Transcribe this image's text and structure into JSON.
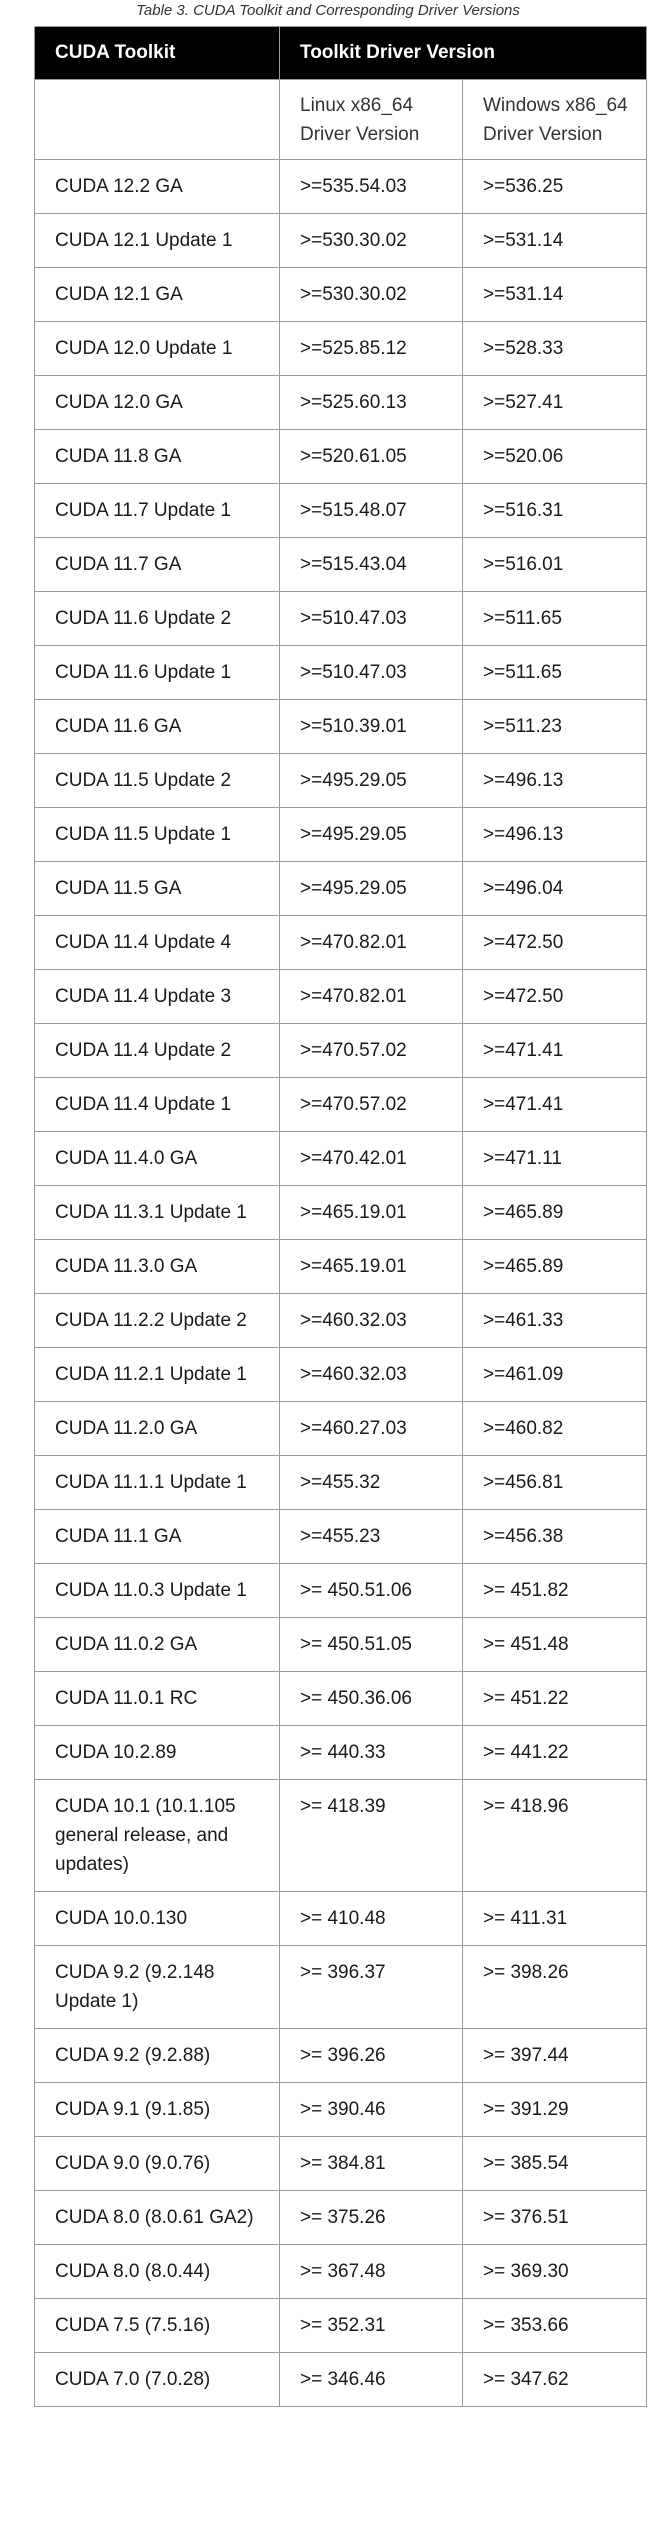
{
  "caption": "Table 3. CUDA Toolkit and Corresponding Driver Versions",
  "table": {
    "header": {
      "toolkit": "CUDA Toolkit",
      "driver_version": "Toolkit Driver Version"
    },
    "subheader": {
      "linux": "Linux x86_64 Driver Version",
      "windows": "Windows x86_64 Driver Version"
    },
    "rows": [
      {
        "toolkit": "CUDA 12.2 GA",
        "linux": ">=535.54.03",
        "windows": ">=536.25"
      },
      {
        "toolkit": "CUDA 12.1 Update 1",
        "linux": ">=530.30.02",
        "windows": ">=531.14"
      },
      {
        "toolkit": "CUDA 12.1 GA",
        "linux": ">=530.30.02",
        "windows": ">=531.14"
      },
      {
        "toolkit": "CUDA 12.0 Update 1",
        "linux": ">=525.85.12",
        "windows": ">=528.33"
      },
      {
        "toolkit": "CUDA 12.0 GA",
        "linux": ">=525.60.13",
        "windows": ">=527.41"
      },
      {
        "toolkit": "CUDA 11.8 GA",
        "linux": ">=520.61.05",
        "windows": ">=520.06"
      },
      {
        "toolkit": "CUDA 11.7 Update 1",
        "linux": ">=515.48.07",
        "windows": ">=516.31"
      },
      {
        "toolkit": "CUDA 11.7 GA",
        "linux": ">=515.43.04",
        "windows": ">=516.01"
      },
      {
        "toolkit": "CUDA 11.6 Update 2",
        "linux": ">=510.47.03",
        "windows": ">=511.65"
      },
      {
        "toolkit": "CUDA 11.6 Update 1",
        "linux": ">=510.47.03",
        "windows": ">=511.65"
      },
      {
        "toolkit": "CUDA 11.6 GA",
        "linux": ">=510.39.01",
        "windows": ">=511.23"
      },
      {
        "toolkit": "CUDA 11.5 Update 2",
        "linux": ">=495.29.05",
        "windows": ">=496.13"
      },
      {
        "toolkit": "CUDA 11.5 Update 1",
        "linux": ">=495.29.05",
        "windows": ">=496.13"
      },
      {
        "toolkit": "CUDA 11.5 GA",
        "linux": ">=495.29.05",
        "windows": ">=496.04"
      },
      {
        "toolkit": "CUDA 11.4 Update 4",
        "linux": ">=470.82.01",
        "windows": ">=472.50"
      },
      {
        "toolkit": "CUDA 11.4 Update 3",
        "linux": ">=470.82.01",
        "windows": ">=472.50"
      },
      {
        "toolkit": "CUDA 11.4 Update 2",
        "linux": ">=470.57.02",
        "windows": ">=471.41"
      },
      {
        "toolkit": "CUDA 11.4 Update 1",
        "linux": ">=470.57.02",
        "windows": ">=471.41"
      },
      {
        "toolkit": "CUDA 11.4.0 GA",
        "linux": ">=470.42.01",
        "windows": ">=471.11"
      },
      {
        "toolkit": "CUDA 11.3.1 Update 1",
        "linux": ">=465.19.01",
        "windows": ">=465.89"
      },
      {
        "toolkit": "CUDA 11.3.0 GA",
        "linux": ">=465.19.01",
        "windows": ">=465.89"
      },
      {
        "toolkit": "CUDA 11.2.2 Update 2",
        "linux": ">=460.32.03",
        "windows": ">=461.33"
      },
      {
        "toolkit": "CUDA 11.2.1 Update 1",
        "linux": ">=460.32.03",
        "windows": ">=461.09"
      },
      {
        "toolkit": "CUDA 11.2.0 GA",
        "linux": ">=460.27.03",
        "windows": ">=460.82"
      },
      {
        "toolkit": "CUDA 11.1.1 Update 1",
        "linux": ">=455.32",
        "windows": ">=456.81"
      },
      {
        "toolkit": "CUDA 11.1 GA",
        "linux": ">=455.23",
        "windows": ">=456.38"
      },
      {
        "toolkit": "CUDA 11.0.3 Update 1",
        "linux": ">= 450.51.06",
        "windows": ">= 451.82"
      },
      {
        "toolkit": "CUDA 11.0.2 GA",
        "linux": ">= 450.51.05",
        "windows": ">= 451.48"
      },
      {
        "toolkit": "CUDA 11.0.1 RC",
        "linux": ">= 450.36.06",
        "windows": ">= 451.22"
      },
      {
        "toolkit": "CUDA 10.2.89",
        "linux": ">= 440.33",
        "windows": ">= 441.22"
      },
      {
        "toolkit": "CUDA 10.1 (10.1.105 general release, and updates)",
        "linux": ">= 418.39",
        "windows": ">= 418.96"
      },
      {
        "toolkit": "CUDA 10.0.130",
        "linux": ">= 410.48",
        "windows": ">= 411.31"
      },
      {
        "toolkit": "CUDA 9.2 (9.2.148 Update 1)",
        "linux": ">= 396.37",
        "windows": ">= 398.26"
      },
      {
        "toolkit": "CUDA 9.2 (9.2.88)",
        "linux": ">= 396.26",
        "windows": ">= 397.44"
      },
      {
        "toolkit": "CUDA 9.1 (9.1.85)",
        "linux": ">= 390.46",
        "windows": ">= 391.29"
      },
      {
        "toolkit": "CUDA 9.0 (9.0.76)",
        "linux": ">= 384.81",
        "windows": ">= 385.54"
      },
      {
        "toolkit": "CUDA 8.0 (8.0.61 GA2)",
        "linux": ">= 375.26",
        "windows": ">= 376.51"
      },
      {
        "toolkit": "CUDA 8.0 (8.0.44)",
        "linux": ">= 367.48",
        "windows": ">= 369.30"
      },
      {
        "toolkit": "CUDA 7.5 (7.5.16)",
        "linux": ">= 352.31",
        "windows": ">= 353.66"
      },
      {
        "toolkit": "CUDA 7.0 (7.0.28)",
        "linux": ">= 346.46",
        "windows": ">= 347.62"
      }
    ]
  }
}
